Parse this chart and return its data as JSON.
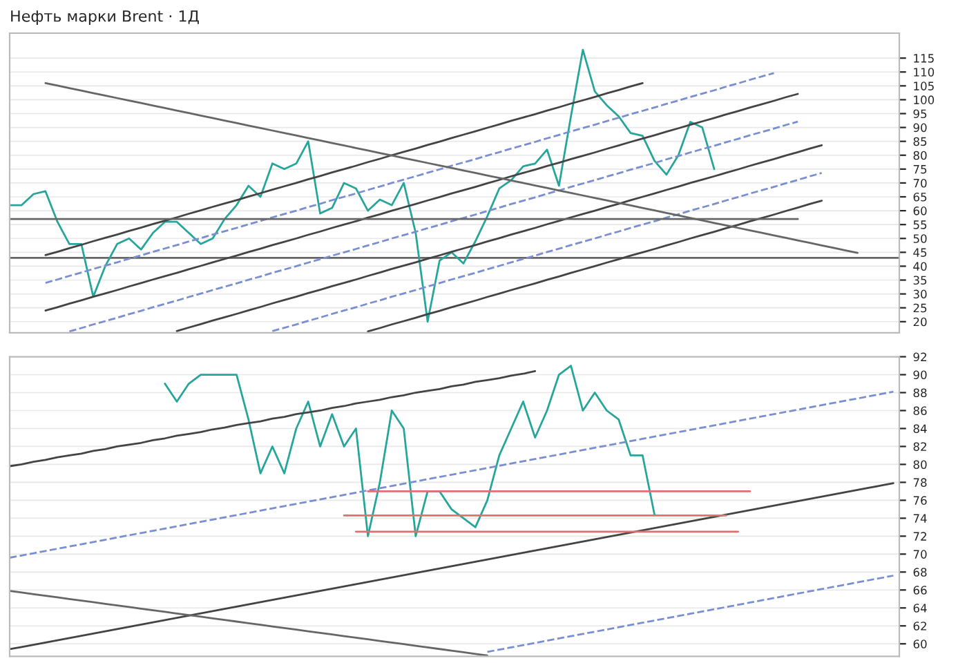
{
  "chart_data": [
    {
      "type": "line",
      "title": "Нефть марки Brent · 1Д",
      "ylim": [
        16,
        124
      ],
      "yticks": [
        20,
        25,
        30,
        35,
        40,
        45,
        50,
        55,
        60,
        65,
        70,
        75,
        80,
        85,
        90,
        95,
        100,
        105,
        110,
        115
      ],
      "tick_labels": "y",
      "grid": true,
      "categories": [
        null,
        null,
        null,
        null,
        null,
        null,
        null,
        null,
        null,
        null,
        null,
        null,
        null,
        null,
        null,
        null,
        null,
        null,
        null,
        null,
        null,
        null,
        null,
        null,
        null,
        null,
        null,
        null,
        null,
        null,
        null,
        null,
        null,
        null,
        null,
        null,
        null,
        null,
        null,
        null,
        null,
        null,
        null,
        null,
        null,
        null,
        null,
        null,
        null,
        null,
        null,
        null,
        null,
        null,
        null,
        null,
        null,
        null,
        null,
        null,
        null,
        null,
        null,
        null,
        null,
        null,
        null,
        null,
        null,
        null,
        null,
        null,
        null,
        null,
        null
      ],
      "ref_lines": [
        {
          "axis": "y",
          "value": 43,
          "color": "#666666"
        }
      ],
      "series": [
        {
          "color": "#26a69a",
          "line_style": "solid",
          "values": [
            62,
            62,
            66,
            67,
            56,
            48,
            48,
            29,
            40,
            48,
            50,
            46,
            52,
            56,
            56,
            52,
            48,
            50,
            57,
            62,
            69,
            65,
            77,
            75,
            77,
            85,
            59,
            61,
            70,
            68,
            60,
            64,
            62,
            70,
            52,
            20,
            42,
            45,
            41,
            49,
            58,
            68,
            71,
            76,
            77,
            82,
            69,
            94,
            118,
            103,
            98,
            94,
            88,
            87,
            78,
            73,
            80,
            92,
            90,
            75,
            null,
            null,
            null,
            null,
            null,
            null,
            null,
            null,
            null,
            null,
            null,
            null,
            null,
            null,
            null
          ]
        },
        {
          "color": "#444444",
          "line_style": "solid",
          "values": [
            null,
            null,
            null,
            44,
            45.2,
            46.5,
            47.7,
            49,
            50.2,
            51.4,
            52.7,
            53.9,
            55.2,
            56.4,
            57.6,
            58.9,
            60.1,
            61.4,
            62.6,
            63.8,
            65.1,
            66.3,
            67.6,
            68.8,
            70,
            71.3,
            72.5,
            73.8,
            75,
            76.2,
            77.5,
            78.7,
            80,
            81.2,
            82.4,
            83.7,
            84.9,
            86.2,
            87.4,
            88.6,
            89.9,
            91.1,
            92.4,
            93.6,
            94.8,
            96.1,
            97.3,
            98.6,
            99.8,
            101,
            102.3,
            103.5,
            104.8,
            106,
            null,
            null,
            null,
            null,
            null,
            null,
            null,
            null,
            null,
            null,
            null,
            null,
            null,
            null,
            null,
            null,
            null,
            null,
            null,
            null,
            null
          ]
        },
        {
          "color": "#7a8fd0",
          "line_style": "dashed",
          "values": [
            null,
            null,
            null,
            34,
            35.2,
            36.5,
            37.7,
            39,
            40.2,
            41.4,
            42.7,
            43.9,
            45.2,
            46.4,
            47.6,
            48.9,
            50.1,
            51.4,
            52.6,
            53.8,
            55.1,
            56.3,
            57.6,
            58.8,
            60,
            61.3,
            62.5,
            63.8,
            65,
            66.2,
            67.5,
            68.7,
            70,
            71.2,
            72.4,
            73.7,
            74.9,
            76.2,
            77.4,
            78.6,
            79.9,
            81.1,
            82.4,
            83.6,
            84.8,
            86.1,
            87.3,
            88.6,
            89.8,
            91,
            92.3,
            93.5,
            94.8,
            96,
            97.2,
            98.5,
            99.7,
            101,
            102.2,
            103.4,
            104.7,
            105.9,
            107.2,
            108.4,
            109.6,
            null,
            null,
            null,
            null,
            null,
            null,
            null,
            null,
            null,
            null
          ]
        },
        {
          "color": "#444444",
          "line_style": "solid",
          "values": [
            null,
            null,
            null,
            24,
            25.2,
            26.5,
            27.7,
            29,
            30.2,
            31.4,
            32.7,
            33.9,
            35.2,
            36.4,
            37.6,
            38.9,
            40.1,
            41.4,
            42.6,
            43.8,
            45.1,
            46.3,
            47.6,
            48.8,
            50,
            51.3,
            52.5,
            53.8,
            55,
            56.2,
            57.5,
            58.7,
            60,
            61.2,
            62.4,
            63.7,
            64.9,
            66.2,
            67.4,
            68.6,
            69.9,
            71.1,
            72.4,
            73.6,
            74.8,
            76.1,
            77.3,
            78.6,
            79.8,
            81,
            82.3,
            83.5,
            84.8,
            86,
            87.2,
            88.5,
            89.7,
            91,
            92.2,
            93.4,
            94.7,
            95.9,
            97.2,
            98.4,
            99.6,
            100.9,
            102.1,
            null,
            null,
            null,
            null,
            null,
            null,
            null,
            null
          ]
        },
        {
          "color": "#7a8fd0",
          "line_style": "dashed",
          "values": [
            null,
            null,
            null,
            null,
            null,
            16.5,
            17.7,
            19,
            20.2,
            21.4,
            22.7,
            23.9,
            25.2,
            26.4,
            27.6,
            28.9,
            30.1,
            31.4,
            32.6,
            33.8,
            35.1,
            36.3,
            37.6,
            38.8,
            40,
            41.3,
            42.5,
            43.8,
            45,
            46.2,
            47.5,
            48.7,
            50,
            51.2,
            52.4,
            53.7,
            54.9,
            56.2,
            57.4,
            58.6,
            59.9,
            61.1,
            62.4,
            63.6,
            64.8,
            66.1,
            67.3,
            68.6,
            69.8,
            71,
            72.3,
            73.5,
            74.8,
            76,
            77.2,
            78.5,
            79.7,
            81,
            82.2,
            83.4,
            84.7,
            85.9,
            87.2,
            88.4,
            89.6,
            90.9,
            92.1,
            null,
            null,
            null,
            null,
            null,
            null,
            null,
            null
          ]
        },
        {
          "color": "#444444",
          "line_style": "solid",
          "values": [
            null,
            null,
            null,
            null,
            null,
            null,
            null,
            null,
            null,
            null,
            null,
            null,
            null,
            null,
            16.6,
            17.9,
            19.1,
            20.4,
            21.6,
            22.8,
            24.1,
            25.3,
            26.6,
            27.8,
            29,
            30.3,
            31.5,
            32.8,
            34,
            35.2,
            36.5,
            37.7,
            39,
            40.2,
            41.4,
            42.7,
            43.9,
            45.2,
            46.4,
            47.6,
            48.9,
            50.1,
            51.4,
            52.6,
            53.8,
            55.1,
            56.3,
            57.6,
            58.8,
            60,
            61.3,
            62.5,
            63.8,
            65,
            66.2,
            67.5,
            68.7,
            70,
            71.2,
            72.4,
            73.7,
            74.9,
            76.2,
            77.4,
            78.6,
            79.9,
            81.1,
            82.4,
            83.6,
            null,
            null,
            null,
            null,
            null,
            null
          ]
        },
        {
          "color": "#7a8fd0",
          "line_style": "dashed",
          "values": [
            null,
            null,
            null,
            null,
            null,
            null,
            null,
            null,
            null,
            null,
            null,
            null,
            null,
            null,
            null,
            null,
            null,
            null,
            null,
            null,
            null,
            null,
            16.6,
            17.8,
            19,
            20.3,
            21.5,
            22.8,
            24,
            25.2,
            26.5,
            27.7,
            29,
            30.2,
            31.4,
            32.7,
            33.9,
            35.2,
            36.4,
            37.6,
            38.9,
            40.1,
            41.4,
            42.6,
            43.8,
            45.1,
            46.3,
            47.6,
            48.8,
            50,
            51.3,
            52.5,
            53.8,
            55,
            56.2,
            57.5,
            58.7,
            60,
            61.2,
            62.4,
            63.7,
            64.9,
            66.2,
            67.4,
            68.6,
            69.9,
            71.1,
            72.4,
            73.6,
            null,
            null,
            null,
            null,
            null,
            null
          ]
        },
        {
          "color": "#444444",
          "line_style": "solid",
          "values": [
            null,
            null,
            null,
            null,
            null,
            null,
            null,
            null,
            null,
            null,
            null,
            null,
            null,
            null,
            null,
            null,
            null,
            null,
            null,
            null,
            null,
            null,
            null,
            null,
            null,
            null,
            null,
            null,
            null,
            null,
            16.5,
            17.7,
            19,
            20.2,
            21.4,
            22.7,
            23.9,
            25.2,
            26.4,
            27.6,
            28.9,
            30.1,
            31.4,
            32.6,
            33.8,
            35.1,
            36.3,
            37.6,
            38.8,
            40,
            41.3,
            42.5,
            43.8,
            45,
            46.2,
            47.5,
            48.7,
            50,
            51.2,
            52.4,
            53.7,
            54.9,
            56.2,
            57.4,
            58.6,
            59.9,
            61.1,
            62.4,
            63.6,
            null,
            null,
            null,
            null,
            null,
            null
          ]
        },
        {
          "color": "#666666",
          "line_style": "solid",
          "values": [
            null,
            null,
            null,
            106,
            105.1,
            104.2,
            103.3,
            102.4,
            101.5,
            100.6,
            99.7,
            98.8,
            97.9,
            97,
            96.1,
            95.2,
            94.3,
            93.4,
            92.5,
            91.6,
            90.7,
            89.8,
            88.9,
            88,
            87.1,
            86.2,
            85.3,
            84.4,
            83.5,
            82.6,
            81.7,
            80.8,
            79.9,
            79,
            78.1,
            77.2,
            76.3,
            75.4,
            74.5,
            73.6,
            72.7,
            71.8,
            70.9,
            70,
            69.1,
            68.2,
            67.3,
            66.4,
            65.5,
            64.6,
            63.7,
            62.8,
            61.9,
            61,
            60.1,
            59.2,
            58.3,
            57.4,
            56.5,
            55.6,
            54.7,
            53.8,
            52.9,
            52,
            51.1,
            50.2,
            49.3,
            48.4,
            47.5,
            46.6,
            45.7,
            44.8,
            null,
            null,
            null
          ]
        },
        {
          "color": "#666666",
          "line_style": "solid",
          "values": [
            57,
            57,
            57,
            57,
            57,
            57,
            57,
            57,
            57,
            57,
            57,
            57,
            57,
            57,
            57,
            57,
            57,
            57,
            57,
            57,
            57,
            57,
            57,
            57,
            57,
            57,
            57,
            57,
            57,
            57,
            57,
            57,
            57,
            57,
            57,
            57,
            57,
            57,
            57,
            57,
            57,
            57,
            57,
            57,
            57,
            57,
            57,
            57,
            57,
            57,
            57,
            57,
            57,
            57,
            57,
            57,
            57,
            57,
            57,
            57,
            57,
            57,
            57,
            57,
            57,
            57,
            57,
            null,
            null,
            null,
            null,
            null,
            null,
            null,
            null
          ]
        }
      ]
    },
    {
      "type": "line",
      "ylim": [
        58.6,
        92
      ],
      "yticks": [
        60,
        62,
        64,
        66,
        68,
        70,
        72,
        74,
        76,
        78,
        80,
        82,
        84,
        86,
        88,
        90,
        92
      ],
      "tick_labels": "y",
      "grid": true,
      "categories": [
        null,
        null,
        null,
        null,
        null,
        null,
        null,
        null,
        null,
        null,
        null,
        null,
        null,
        null,
        null,
        null,
        null,
        null,
        null,
        null,
        null,
        null,
        null,
        null,
        null,
        null,
        null,
        null,
        null,
        null,
        null,
        null,
        null,
        null,
        null,
        null,
        null,
        null,
        null,
        null,
        null,
        null,
        null,
        null,
        null,
        null,
        null,
        null,
        null,
        null,
        null,
        null,
        null,
        null,
        null,
        null,
        null,
        null,
        null,
        null,
        null,
        null,
        null,
        null,
        null,
        null,
        null,
        null,
        null,
        null,
        null,
        null,
        null,
        null,
        null
      ],
      "series": [
        {
          "color": "#26a69a",
          "line_style": "solid",
          "values": [
            null,
            null,
            null,
            null,
            null,
            null,
            null,
            null,
            null,
            null,
            null,
            null,
            null,
            89,
            87,
            89,
            90,
            90,
            90,
            90,
            85,
            79,
            82,
            79,
            84,
            87,
            82,
            85.6,
            82,
            84,
            72,
            78,
            86,
            84,
            72,
            77,
            77,
            75,
            74,
            73,
            76,
            81,
            84,
            87,
            83,
            86,
            90,
            91,
            86,
            88,
            86,
            85,
            81,
            81,
            74.4,
            null,
            null,
            null,
            null,
            null,
            null,
            null,
            null,
            null,
            null,
            null,
            null,
            null,
            null,
            null,
            null,
            null,
            null,
            null,
            null
          ]
        },
        {
          "color": "#444444",
          "line_style": "solid",
          "values": [
            79.8,
            80,
            80.3,
            80.5,
            80.8,
            81,
            81.2,
            81.5,
            81.7,
            82,
            82.2,
            82.4,
            82.7,
            82.9,
            83.2,
            83.4,
            83.6,
            83.9,
            84.1,
            84.4,
            84.6,
            84.8,
            85.1,
            85.3,
            85.6,
            85.8,
            86,
            86.3,
            86.5,
            86.8,
            87,
            87.2,
            87.5,
            87.7,
            88,
            88.2,
            88.4,
            88.7,
            88.9,
            89.2,
            89.4,
            89.6,
            89.9,
            90.1,
            90.4,
            null,
            null,
            null,
            null,
            null,
            null,
            null,
            null,
            null,
            null,
            null,
            null,
            null,
            null,
            null,
            null,
            null,
            null,
            null,
            null,
            null,
            null,
            null,
            null,
            null,
            null,
            null,
            null,
            null,
            null
          ]
        },
        {
          "color": "#444444",
          "line_style": "solid",
          "values": [
            59.4,
            59.65,
            59.9,
            60.15,
            60.4,
            60.65,
            60.9,
            61.15,
            61.4,
            61.65,
            61.9,
            62.15,
            62.4,
            62.65,
            62.9,
            63.15,
            63.4,
            63.65,
            63.9,
            64.15,
            64.4,
            64.65,
            64.9,
            65.15,
            65.4,
            65.65,
            65.9,
            66.15,
            66.4,
            66.65,
            66.9,
            67.15,
            67.4,
            67.65,
            67.9,
            68.15,
            68.4,
            68.65,
            68.9,
            69.15,
            69.4,
            69.65,
            69.9,
            70.15,
            70.4,
            70.65,
            70.9,
            71.15,
            71.4,
            71.65,
            71.9,
            72.15,
            72.4,
            72.65,
            72.9,
            73.15,
            73.4,
            73.65,
            73.9,
            74.15,
            74.4,
            74.65,
            74.9,
            75.15,
            75.4,
            75.65,
            75.9,
            76.15,
            76.4,
            76.65,
            76.9,
            77.15,
            77.4,
            77.65,
            77.9
          ]
        },
        {
          "color": "#7a8fd0",
          "line_style": "dashed",
          "values": [
            69.6,
            69.85,
            70.1,
            70.35,
            70.6,
            70.85,
            71.1,
            71.35,
            71.6,
            71.85,
            72.1,
            72.35,
            72.6,
            72.85,
            73.1,
            73.35,
            73.6,
            73.85,
            74.1,
            74.35,
            74.6,
            74.85,
            75.1,
            75.35,
            75.6,
            75.85,
            76.1,
            76.35,
            76.6,
            76.85,
            77.1,
            77.35,
            77.6,
            77.85,
            78.1,
            78.35,
            78.6,
            78.85,
            79.1,
            79.35,
            79.6,
            79.85,
            80.1,
            80.35,
            80.6,
            80.85,
            81.1,
            81.35,
            81.6,
            81.85,
            82.1,
            82.35,
            82.6,
            82.85,
            83.1,
            83.35,
            83.6,
            83.85,
            84.1,
            84.35,
            84.6,
            84.85,
            85.1,
            85.35,
            85.6,
            85.85,
            86.1,
            86.35,
            86.6,
            86.85,
            87.1,
            87.35,
            87.6,
            87.85,
            88.1
          ]
        },
        {
          "color": "#7a8fd0",
          "line_style": "dashed",
          "values": [
            null,
            null,
            null,
            null,
            null,
            null,
            null,
            null,
            null,
            null,
            null,
            null,
            null,
            null,
            null,
            null,
            null,
            null,
            null,
            null,
            null,
            null,
            null,
            null,
            null,
            null,
            null,
            null,
            null,
            null,
            null,
            null,
            null,
            null,
            null,
            null,
            null,
            null,
            null,
            null,
            59.1,
            59.35,
            59.6,
            59.85,
            60.1,
            60.35,
            60.6,
            60.85,
            61.1,
            61.35,
            61.6,
            61.85,
            62.1,
            62.35,
            62.6,
            62.85,
            63.1,
            63.35,
            63.6,
            63.85,
            64.1,
            64.35,
            64.6,
            64.85,
            65.1,
            65.35,
            65.6,
            65.85,
            66.1,
            66.35,
            66.6,
            66.85,
            67.1,
            67.35,
            67.6
          ]
        },
        {
          "color": "#666666",
          "line_style": "solid",
          "values": [
            65.9,
            65.72,
            65.54,
            65.36,
            65.18,
            65,
            64.82,
            64.64,
            64.46,
            64.28,
            64.1,
            63.92,
            63.74,
            63.56,
            63.38,
            63.2,
            63.02,
            62.84,
            62.66,
            62.48,
            62.3,
            62.12,
            61.94,
            61.76,
            61.58,
            61.4,
            61.22,
            61.04,
            60.86,
            60.68,
            60.5,
            60.32,
            60.14,
            59.96,
            59.78,
            59.6,
            59.42,
            59.24,
            59.06,
            58.88,
            58.7,
            null,
            null,
            null,
            null,
            null,
            null,
            null,
            null,
            null,
            null,
            null,
            null,
            null,
            null,
            null,
            null,
            null,
            null,
            null,
            null,
            null,
            null,
            null,
            null,
            null,
            null,
            null,
            null,
            null,
            null,
            null,
            null,
            null,
            null
          ]
        },
        {
          "color": "#e07070",
          "line_style": "solid",
          "values": [
            null,
            null,
            null,
            null,
            null,
            null,
            null,
            null,
            null,
            null,
            null,
            null,
            null,
            null,
            null,
            null,
            null,
            null,
            null,
            null,
            null,
            null,
            null,
            null,
            null,
            null,
            null,
            null,
            null,
            null,
            77,
            77,
            77,
            77,
            77,
            77,
            77,
            77,
            77,
            77,
            77,
            77,
            77,
            77,
            77,
            77,
            77,
            77,
            77,
            77,
            77,
            77,
            77,
            77,
            77,
            77,
            77,
            77,
            77,
            77,
            77,
            77,
            77,
            null,
            null,
            null,
            null,
            null,
            null,
            null,
            null,
            null,
            null,
            null,
            null
          ]
        },
        {
          "color": "#e07070",
          "line_style": "solid",
          "values": [
            null,
            null,
            null,
            null,
            null,
            null,
            null,
            null,
            null,
            null,
            null,
            null,
            null,
            null,
            null,
            null,
            null,
            null,
            null,
            null,
            null,
            null,
            null,
            null,
            null,
            null,
            null,
            null,
            74.3,
            74.3,
            74.3,
            74.3,
            74.3,
            74.3,
            74.3,
            74.3,
            74.3,
            74.3,
            74.3,
            74.3,
            74.3,
            74.3,
            74.3,
            74.3,
            74.3,
            74.3,
            74.3,
            74.3,
            74.3,
            74.3,
            74.3,
            74.3,
            74.3,
            74.3,
            74.3,
            74.3,
            74.3,
            74.3,
            74.3,
            74.3,
            74.3,
            null,
            null,
            null,
            null,
            null,
            null,
            null,
            null,
            null,
            null,
            null,
            null,
            null,
            null
          ]
        },
        {
          "color": "#e07070",
          "line_style": "solid",
          "values": [
            null,
            null,
            null,
            null,
            null,
            null,
            null,
            null,
            null,
            null,
            null,
            null,
            null,
            null,
            null,
            null,
            null,
            null,
            null,
            null,
            null,
            null,
            null,
            null,
            null,
            null,
            null,
            null,
            null,
            72.5,
            72.5,
            72.5,
            72.5,
            72.5,
            72.5,
            72.5,
            72.5,
            72.5,
            72.5,
            72.5,
            72.5,
            72.5,
            72.5,
            72.5,
            72.5,
            72.5,
            72.5,
            72.5,
            72.5,
            72.5,
            72.5,
            72.5,
            72.5,
            72.5,
            72.5,
            72.5,
            72.5,
            72.5,
            72.5,
            72.5,
            72.5,
            72.5,
            null,
            null,
            null,
            null,
            null,
            null,
            null,
            null,
            null,
            null,
            null,
            null,
            null
          ]
        }
      ]
    }
  ]
}
